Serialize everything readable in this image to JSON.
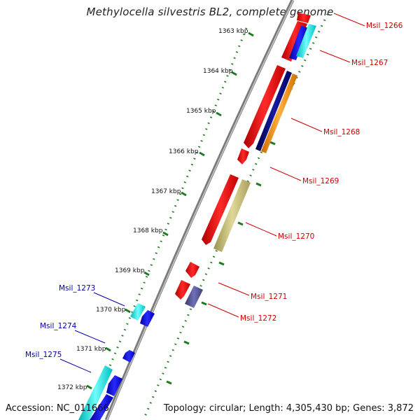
{
  "title": "Methylocella silvestris BL2, complete genome",
  "accession": "Accession: NC_011666",
  "topology": "Topology: circular; Length: 4,305,430 bp; Genes: 3,872",
  "colors": {
    "backbone": "#8c8c8c",
    "tick_marks": "#1e7a1e",
    "forward_label": "#cc0000",
    "reverse_label": "#0000aa",
    "cds": "#ff0000",
    "blue": "#0000ff",
    "cyan": "#00ffff",
    "navy": "#000080",
    "orange": "#ff9900",
    "khaki": "#c8c078",
    "slate": "#505090"
  },
  "kbp_labels": [
    "1363 kbp",
    "1364 kbp",
    "1365 kbp",
    "1366 kbp",
    "1367 kbp",
    "1368 kbp",
    "1369 kbp",
    "1370 kbp",
    "1371 kbp",
    "1372 kbp"
  ],
  "gene_labels_forward": [
    "Msil_1266",
    "Msil_1267",
    "Msil_1268",
    "Msil_1269",
    "Msil_1270",
    "Msil_1271",
    "Msil_1272"
  ],
  "gene_labels_reverse": [
    "Msil_1273",
    "Msil_1274",
    "Msil_1275"
  ]
}
